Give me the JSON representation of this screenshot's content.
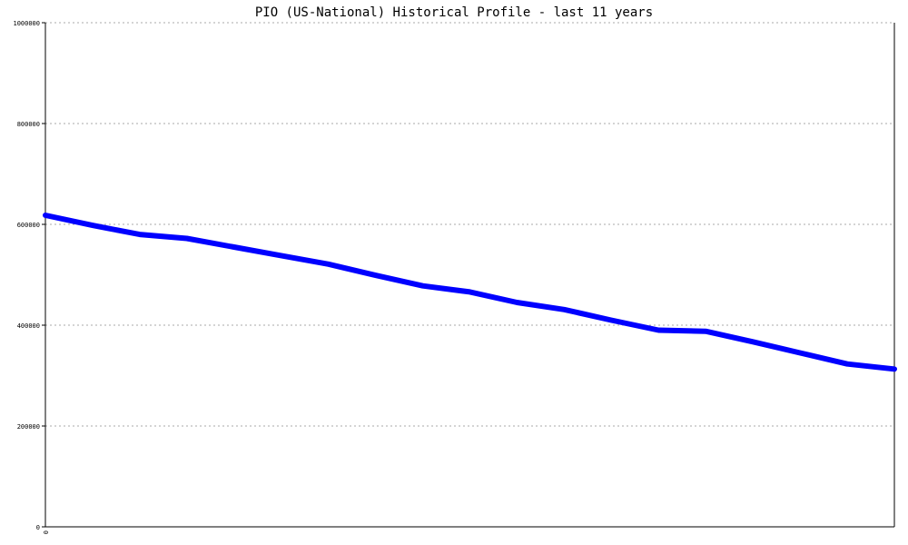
{
  "chart_data": {
    "type": "line",
    "title": "PIO (US-National) Historical Profile - last 11 years",
    "xlabel": "",
    "ylabel": "",
    "ylim": [
      0,
      1000000
    ],
    "yticks": [
      0,
      200000,
      400000,
      600000,
      800000,
      1000000
    ],
    "ytick_labels": [
      "0",
      "200000",
      "400000",
      "600000",
      "800000",
      "1000000"
    ],
    "xtick_labels": [
      "0"
    ],
    "grid": true,
    "legend": "none",
    "line_color": "#0000ff",
    "grid_color": "#aaaaaa",
    "series": [
      {
        "values": [
          618000,
          598000,
          580000,
          572000,
          555000,
          538000,
          521000,
          499000,
          478000,
          466000,
          445000,
          431000,
          410000,
          390000,
          388000,
          367000,
          345000,
          323000,
          313000
        ]
      }
    ]
  }
}
